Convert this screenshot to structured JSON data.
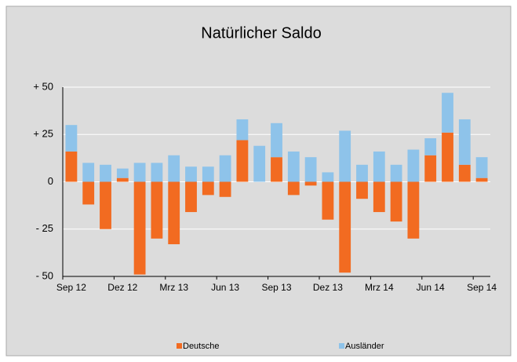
{
  "chart_data": {
    "type": "bar",
    "stacked": true,
    "title": "Natürlicher Saldo",
    "categories": [
      "Sep 12",
      null,
      null,
      "Dez 12",
      null,
      null,
      "Mrz 13",
      null,
      null,
      "Jun 13",
      null,
      null,
      "Sep 13",
      null,
      null,
      "Dez 13",
      null,
      null,
      "Mrz 14",
      null,
      null,
      "Jun 14",
      null,
      null,
      "Sep 14"
    ],
    "series": [
      {
        "name": "Deutsche",
        "color": "#f26b21",
        "values": [
          16,
          -12,
          -25,
          2,
          -49,
          -30,
          -33,
          -16,
          -7,
          -8,
          22,
          0,
          13,
          -7,
          -2,
          -20,
          -48,
          -9,
          -16,
          -21,
          -30,
          14,
          26,
          9,
          2
        ]
      },
      {
        "name": "Ausländer",
        "color": "#8ec3ea",
        "values": [
          14,
          10,
          9,
          5,
          10,
          10,
          14,
          8,
          8,
          14,
          11,
          19,
          18,
          16,
          13,
          5,
          27,
          9,
          16,
          9,
          17,
          9,
          21,
          24,
          11
        ]
      }
    ],
    "ylim": [
      -50,
      50
    ],
    "yticks": [
      {
        "value": -50,
        "label": "- 50"
      },
      {
        "value": -25,
        "label": "- 25"
      },
      0,
      {
        "value": 25,
        "label": "+ 25"
      },
      {
        "value": 50,
        "label": "+ 50"
      }
    ],
    "grid": true,
    "legend": "bottom"
  }
}
